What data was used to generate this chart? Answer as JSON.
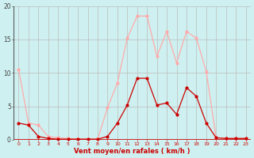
{
  "x": [
    0,
    1,
    2,
    3,
    4,
    5,
    6,
    7,
    8,
    9,
    10,
    11,
    12,
    13,
    14,
    15,
    16,
    17,
    18,
    19,
    20,
    21,
    22,
    23
  ],
  "y_mean": [
    2.5,
    2.2,
    0.5,
    0.2,
    0.1,
    0.1,
    0.1,
    0.1,
    0.1,
    0.5,
    2.5,
    5.2,
    9.2,
    9.2,
    5.2,
    5.5,
    3.8,
    7.8,
    6.5,
    2.5,
    0.3,
    0.2,
    0.2,
    0.2
  ],
  "y_gust": [
    10.5,
    2.5,
    2.2,
    0.5,
    0.3,
    0.2,
    0.1,
    0.1,
    0.1,
    4.8,
    8.5,
    15.2,
    18.5,
    18.5,
    12.5,
    16.2,
    11.5,
    16.2,
    15.2,
    10.2,
    0.3,
    0.2,
    0.2,
    0.2
  ],
  "color_mean": "#cc0000",
  "color_gust": "#ffaaaa",
  "background": "#cff0f0",
  "grid_color": "#bbbbbb",
  "xlabel": "Vent moyen/en rafales ( km/h )",
  "xlabel_color": "#cc0000",
  "ylim": [
    0,
    20
  ],
  "xlim": [
    -0.5,
    23.5
  ],
  "yticks": [
    0,
    5,
    10,
    15,
    20
  ],
  "xticks": [
    0,
    1,
    2,
    3,
    4,
    5,
    6,
    7,
    8,
    9,
    10,
    11,
    12,
    13,
    14,
    15,
    16,
    17,
    18,
    19,
    20,
    21,
    22,
    23
  ]
}
